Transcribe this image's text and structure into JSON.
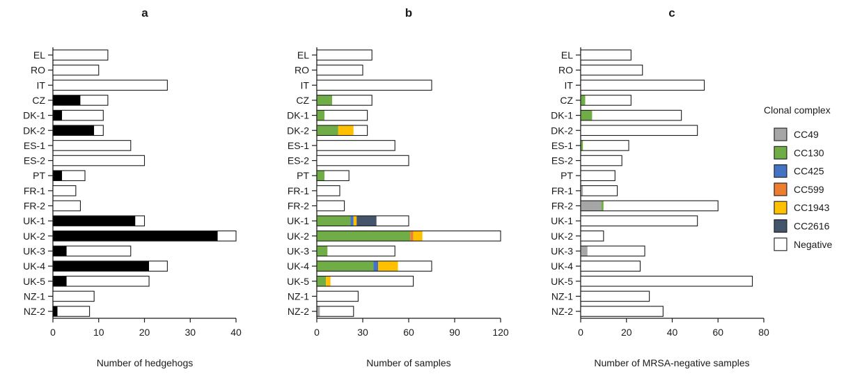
{
  "colors": {
    "positive": "#000000",
    "negative": "#ffffff",
    "CC49": "#a6a6a6",
    "CC130": "#70ad47",
    "CC425": "#4472c4",
    "CC599": "#ed7d31",
    "CC1943": "#ffc000",
    "CC2616": "#44546a"
  },
  "legend": {
    "title": "Clonal complex",
    "items": [
      {
        "key": "CC49",
        "label": "CC49"
      },
      {
        "key": "CC130",
        "label": "CC130"
      },
      {
        "key": "CC425",
        "label": "CC425"
      },
      {
        "key": "CC599",
        "label": "CC599"
      },
      {
        "key": "CC1943",
        "label": "CC1943"
      },
      {
        "key": "CC2616",
        "label": "CC2616"
      },
      {
        "key": "negative",
        "label": "Negative"
      }
    ]
  },
  "chart_data": [
    {
      "type": "bar",
      "orientation": "horizontal",
      "stacked": true,
      "title": "a",
      "xlabel": "Number of hedgehogs",
      "xlim": [
        0,
        40
      ],
      "xticks": [
        0,
        10,
        20,
        30,
        40
      ],
      "categories": [
        "EL",
        "RO",
        "IT",
        "CZ",
        "DK-1",
        "DK-2",
        "ES-1",
        "ES-2",
        "PT",
        "FR-1",
        "FR-2",
        "UK-1",
        "UK-2",
        "UK-3",
        "UK-4",
        "UK-5",
        "NZ-1",
        "NZ-2"
      ],
      "series": [
        {
          "key": "positive",
          "values": [
            0,
            0,
            0,
            6,
            2,
            9,
            0,
            0,
            2,
            0,
            0,
            18,
            36,
            3,
            21,
            3,
            0,
            1
          ]
        },
        {
          "key": "negative",
          "values": [
            12,
            10,
            25,
            6,
            9,
            2,
            17,
            20,
            5,
            5,
            6,
            2,
            4,
            14,
            4,
            18,
            9,
            7
          ]
        }
      ]
    },
    {
      "type": "bar",
      "orientation": "horizontal",
      "stacked": true,
      "title": "b",
      "xlabel": "Number of samples",
      "xlim": [
        0,
        120
      ],
      "xticks": [
        0,
        30,
        60,
        90,
        120
      ],
      "categories": [
        "EL",
        "RO",
        "IT",
        "CZ",
        "DK-1",
        "DK-2",
        "ES-1",
        "ES-2",
        "PT",
        "FR-1",
        "FR-2",
        "UK-1",
        "UK-2",
        "UK-3",
        "UK-4",
        "UK-5",
        "NZ-1",
        "NZ-2"
      ],
      "series": [
        {
          "key": "CC49",
          "values": [
            0,
            0,
            0,
            0,
            0,
            0,
            0,
            0,
            0,
            0,
            0,
            0,
            0,
            0,
            0,
            0,
            0,
            2
          ]
        },
        {
          "key": "CC130",
          "values": [
            0,
            0,
            0,
            10,
            5,
            14,
            0,
            0,
            5,
            0,
            0,
            22,
            61,
            7,
            37,
            6,
            0,
            0
          ]
        },
        {
          "key": "CC425",
          "values": [
            0,
            0,
            0,
            0,
            0,
            0,
            0,
            0,
            0,
            0,
            0,
            2,
            0,
            0,
            3,
            0,
            0,
            0
          ]
        },
        {
          "key": "CC599",
          "values": [
            0,
            0,
            0,
            0,
            0,
            0,
            0,
            0,
            0,
            0,
            0,
            0,
            2,
            0,
            0,
            0,
            0,
            0
          ]
        },
        {
          "key": "CC1943",
          "values": [
            0,
            0,
            0,
            0,
            0,
            10,
            0,
            0,
            0,
            0,
            0,
            2,
            6,
            0,
            13,
            3,
            0,
            0
          ]
        },
        {
          "key": "CC2616",
          "values": [
            0,
            0,
            0,
            0,
            0,
            0,
            0,
            0,
            0,
            0,
            0,
            13,
            0,
            0,
            0,
            0,
            0,
            0
          ]
        },
        {
          "key": "negative",
          "values": [
            36,
            30,
            75,
            26,
            28,
            9,
            51,
            60,
            16,
            15,
            18,
            21,
            51,
            44,
            22,
            54,
            27,
            22
          ]
        }
      ]
    },
    {
      "type": "bar",
      "orientation": "horizontal",
      "stacked": true,
      "title": "c",
      "xlabel": "Number of MRSA-negative samples",
      "xlim": [
        0,
        80
      ],
      "xticks": [
        0,
        20,
        40,
        60,
        80
      ],
      "categories": [
        "EL",
        "RO",
        "IT",
        "CZ",
        "DK-1",
        "DK-2",
        "ES-1",
        "ES-2",
        "PT",
        "FR-1",
        "FR-2",
        "UK-1",
        "UK-2",
        "UK-3",
        "UK-4",
        "UK-5",
        "NZ-1",
        "NZ-2"
      ],
      "series": [
        {
          "key": "CC49",
          "values": [
            0,
            0,
            0,
            0,
            0,
            0,
            0,
            0,
            0,
            1,
            9,
            0,
            0,
            3,
            0,
            0,
            0,
            0
          ]
        },
        {
          "key": "CC130",
          "values": [
            0,
            0,
            0,
            2,
            5,
            0,
            1,
            0,
            0,
            0,
            1,
            0,
            0,
            0,
            0,
            0,
            0,
            0
          ]
        },
        {
          "key": "negative",
          "values": [
            22,
            27,
            54,
            20,
            39,
            51,
            20,
            18,
            15,
            15,
            50,
            51,
            10,
            25,
            26,
            75,
            30,
            36
          ]
        }
      ]
    }
  ]
}
